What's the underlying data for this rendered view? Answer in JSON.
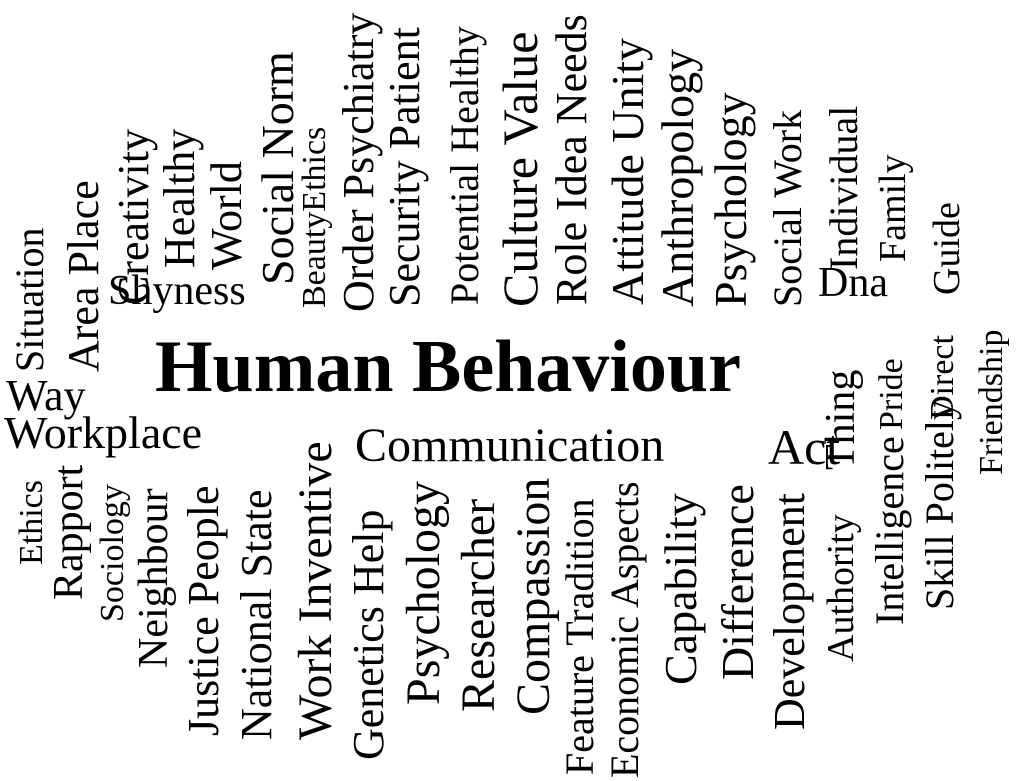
{
  "cloud": {
    "title": "Human Behaviour",
    "words": {
      "communication": "Communication",
      "act": "Act",
      "workplace": "Workplace",
      "way": "Way",
      "shyness": "Shyness",
      "dna": "Dna",
      "situation": "Situation",
      "area_place": "Area Place",
      "creativity": "Creativity",
      "healthy": "Healthy",
      "world": "World",
      "social_norm": "Social Norm",
      "beauty_ethics": "BeautyEthics",
      "order_psychiatry": "Order Psychiatry",
      "security_patient": "Security Patient",
      "potential_healthy": "Potential Healthy",
      "culture_value": "Culture Value",
      "role_idea_needs": "Role Idea Needs",
      "attitude_unity": "Attitude Unity",
      "anthropology": "Anthropology",
      "psychology_top": "Psychology",
      "social_work": "Social Work",
      "individual": "Individual",
      "family": "Family",
      "guide": "Guide",
      "thing": "Thing",
      "pride": "Pride",
      "direct": "Direct",
      "friendship": "Friendship",
      "ethics": "Ethics",
      "rapport": "Rapport",
      "sociology": "Sociology",
      "neighbour": "Neighbour",
      "justice_people": "Justice People",
      "national_state": "National State",
      "work_inventive": "Work Inventive",
      "genetics_help": "Genetics Help",
      "psychology_bottom": "Psychology",
      "researcher": "Researcher",
      "compassion": "Compassion",
      "feature_tradition": "Feature Tradition",
      "economic_aspects": "Economic Aspects",
      "capability": "Capability",
      "difference": "Difference",
      "development": "Development",
      "authority": "Authority",
      "intelligence": "Intelligence",
      "skill_politely": "Skill Politely"
    }
  }
}
